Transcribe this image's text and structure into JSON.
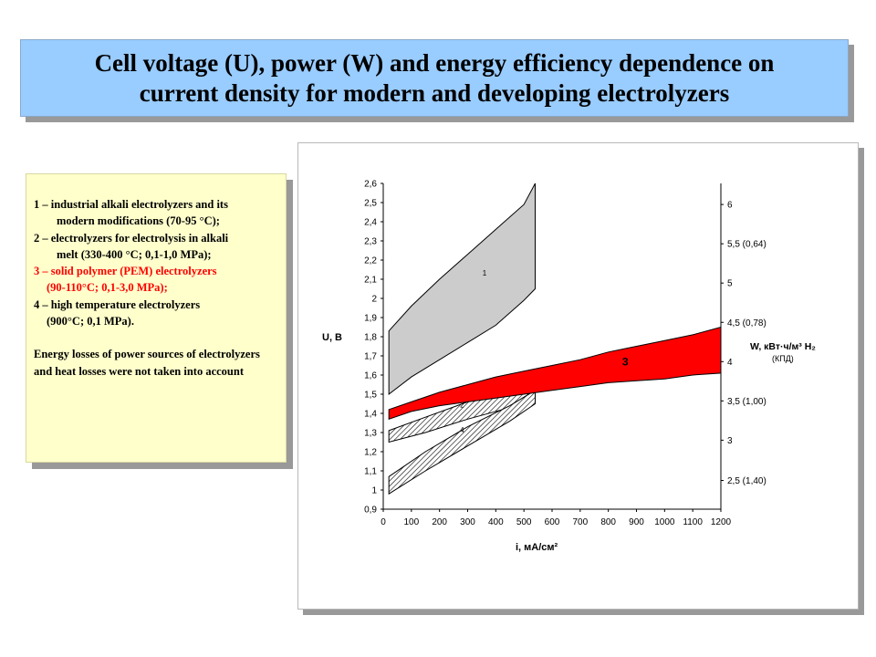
{
  "title": {
    "line1": "Cell voltage (U), power (W) and energy efficiency dependence on",
    "line2": "current density for modern and developing electrolyzers"
  },
  "legend": {
    "l1a": "1 – industrial alkali electrolyzers and its",
    "l1b": "modern modifications  (70-95 °C);",
    "l2a": "2 – electrolyzers for electrolysis in alkali",
    "l2b": "melt (330-400 °C; 0,1-1,0 MPa);",
    "l3a": "3 – solid polymer (PEM) electrolyzers",
    "l3b": "(90-110°C;   0,1-3,0 MPa);",
    "l4a": "4 – high temperature electrolyzers",
    "l4b": "(900°C; 0,1 MPa).",
    "note": "Energy losses of power sources of electrolyzers and heat losses  were not taken into account"
  },
  "chart_data": {
    "type": "area",
    "xlabel": "i, мА/см²",
    "ylabel": "U, В",
    "y2label": "W, кВт·ч/м³ H₂",
    "y2sublabel": "(КПД)",
    "xlim": [
      0,
      1200
    ],
    "ylim": [
      0.9,
      2.6
    ],
    "x_ticks": [
      "0",
      "100",
      "200",
      "300",
      "400",
      "500",
      "600",
      "700",
      "800",
      "900",
      "1000",
      "1100",
      "1200"
    ],
    "y_ticks": [
      "0,9",
      "1",
      "1,1",
      "1,2",
      "1,3",
      "1,4",
      "1,5",
      "1,6",
      "1,7",
      "1,8",
      "1,9",
      "2",
      "2,1",
      "2,2",
      "2,3",
      "2,4",
      "2,5",
      "2,6"
    ],
    "y2_ticks": [
      {
        "label": "2,5 (1,40)",
        "u": 1.05
      },
      {
        "label": "3",
        "u": 1.26
      },
      {
        "label": "3,5 (1,00)",
        "u": 1.465
      },
      {
        "label": "4",
        "u": 1.67
      },
      {
        "label": "4,5 (0,78)",
        "u": 1.875
      },
      {
        "label": "5",
        "u": 2.08
      },
      {
        "label": "5,5 (0,64)",
        "u": 2.285
      },
      {
        "label": "6",
        "u": 2.49
      }
    ],
    "series": [
      {
        "name": "1",
        "fill": "#cccccc",
        "pattern": "solid",
        "upper": [
          [
            20,
            1.83
          ],
          [
            100,
            1.96
          ],
          [
            200,
            2.1
          ],
          [
            300,
            2.23
          ],
          [
            400,
            2.36
          ],
          [
            500,
            2.49
          ],
          [
            540,
            2.6
          ]
        ],
        "lower": [
          [
            20,
            1.5
          ],
          [
            100,
            1.59
          ],
          [
            200,
            1.68
          ],
          [
            300,
            1.77
          ],
          [
            400,
            1.86
          ],
          [
            500,
            1.99
          ],
          [
            540,
            2.05
          ]
        ],
        "label_at": [
          360,
          2.12
        ]
      },
      {
        "name": "2",
        "fill": "#ffffff",
        "pattern": "hatch",
        "upper": [
          [
            20,
            1.31
          ],
          [
            150,
            1.38
          ],
          [
            300,
            1.46
          ],
          [
            450,
            1.53
          ],
          [
            540,
            1.56
          ]
        ],
        "lower": [
          [
            20,
            1.25
          ],
          [
            150,
            1.3
          ],
          [
            300,
            1.37
          ],
          [
            450,
            1.43
          ],
          [
            540,
            1.5
          ]
        ],
        "label_at": [
          280,
          1.43
        ]
      },
      {
        "name": "4",
        "fill": "#ffffff",
        "pattern": "hatch",
        "upper": [
          [
            20,
            1.07
          ],
          [
            150,
            1.2
          ],
          [
            300,
            1.33
          ],
          [
            450,
            1.44
          ],
          [
            540,
            1.52
          ]
        ],
        "lower": [
          [
            20,
            0.98
          ],
          [
            150,
            1.1
          ],
          [
            300,
            1.23
          ],
          [
            450,
            1.36
          ],
          [
            540,
            1.45
          ]
        ],
        "label_at": [
          280,
          1.3
        ]
      },
      {
        "name": "3",
        "fill": "#ff0000",
        "pattern": "solid",
        "upper": [
          [
            20,
            1.42
          ],
          [
            100,
            1.46
          ],
          [
            200,
            1.51
          ],
          [
            300,
            1.55
          ],
          [
            400,
            1.59
          ],
          [
            500,
            1.62
          ],
          [
            600,
            1.65
          ],
          [
            700,
            1.68
          ],
          [
            800,
            1.72
          ],
          [
            900,
            1.75
          ],
          [
            1000,
            1.78
          ],
          [
            1100,
            1.81
          ],
          [
            1200,
            1.85
          ]
        ],
        "lower": [
          [
            20,
            1.37
          ],
          [
            100,
            1.41
          ],
          [
            200,
            1.44
          ],
          [
            300,
            1.46
          ],
          [
            400,
            1.48
          ],
          [
            500,
            1.5
          ],
          [
            600,
            1.52
          ],
          [
            700,
            1.54
          ],
          [
            800,
            1.56
          ],
          [
            900,
            1.57
          ],
          [
            1000,
            1.58
          ],
          [
            1100,
            1.6
          ],
          [
            1200,
            1.61
          ]
        ],
        "label_at": [
          860,
          1.65
        ]
      }
    ]
  }
}
